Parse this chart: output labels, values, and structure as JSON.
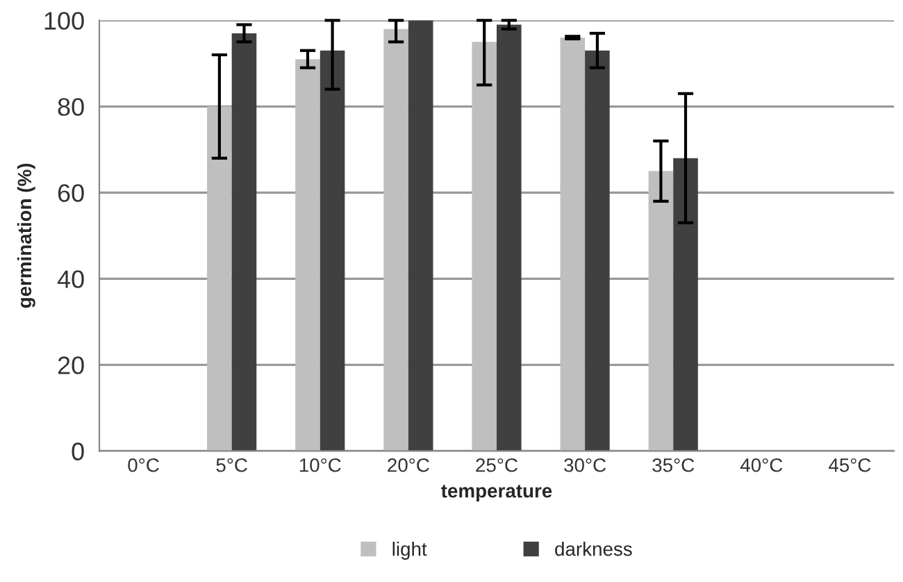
{
  "chart_data": {
    "type": "bar",
    "xlabel": "temperature",
    "ylabel": "germination (%)",
    "categories": [
      "0°C",
      "5°C",
      "10°C",
      "20°C",
      "25°C",
      "30°C",
      "35°C",
      "40°C",
      "45°C"
    ],
    "series": [
      {
        "name": "light",
        "color": "#bfbfbf",
        "values": [
          0,
          80,
          91,
          98,
          95,
          96,
          65,
          0,
          0
        ],
        "errors": [
          null,
          12,
          2,
          [
            95,
            100
          ],
          [
            85,
            100
          ],
          0.3,
          7,
          null,
          null
        ]
      },
      {
        "name": "darkness",
        "color": "#404040",
        "values": [
          0,
          97,
          93,
          100,
          99,
          93,
          68,
          0,
          0
        ],
        "errors": [
          null,
          2,
          [
            84,
            100
          ],
          null,
          [
            98,
            100
          ],
          4,
          15,
          null,
          null
        ]
      }
    ],
    "ylim": [
      0,
      100
    ],
    "yticks": [
      0,
      20,
      40,
      60,
      80,
      100
    ],
    "grid": "y",
    "legend": "bottom"
  }
}
